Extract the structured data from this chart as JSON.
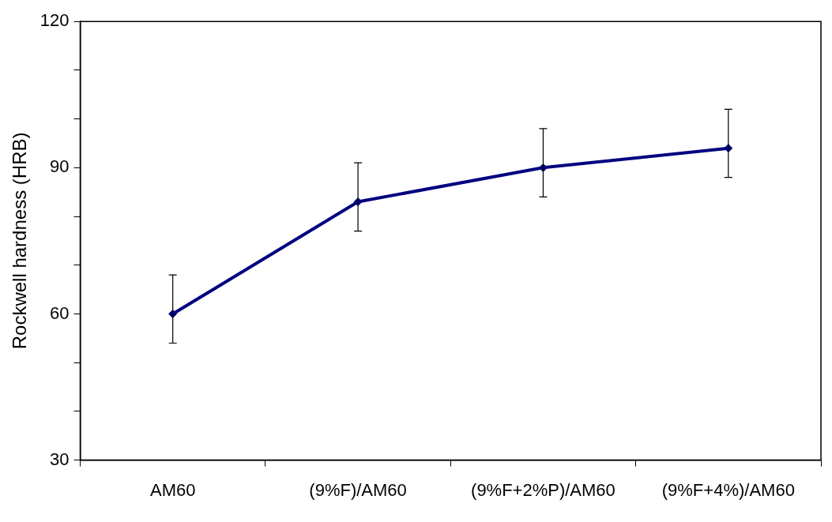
{
  "chart_data": {
    "type": "line",
    "ylabel": "Rockwell hardness (HRB)",
    "categories": [
      "AM60",
      "(9%F)/AM60",
      "(9%F+2%P)/AM60",
      "(9%F+4%)/AM60"
    ],
    "series": [
      {
        "color": "#000080",
        "values": [
          60,
          83,
          90,
          94
        ],
        "errors": [
          [
            54,
            68
          ],
          [
            77,
            91
          ],
          [
            84,
            98
          ],
          [
            88,
            102
          ]
        ]
      }
    ],
    "ylim": [
      30,
      120
    ],
    "yticks": [
      30,
      {
        "value": 40,
        "label": null
      },
      {
        "value": 50,
        "label": null
      },
      60,
      {
        "value": 70,
        "label": null
      },
      {
        "value": 80,
        "label": null
      },
      90,
      {
        "value": 100,
        "label": null
      },
      {
        "value": 110,
        "label": null
      },
      120
    ],
    "grid": false,
    "legend": false,
    "marker": "diamond",
    "line_style": "solid"
  }
}
